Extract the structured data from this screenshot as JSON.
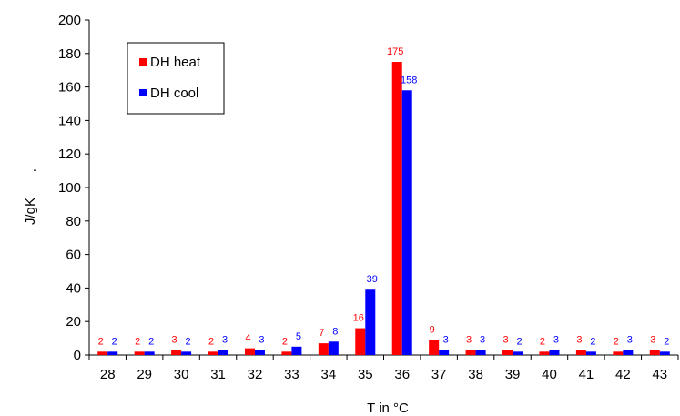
{
  "chart_data": {
    "type": "bar",
    "xlabel": "T in °C",
    "ylabel": "J/gK",
    "ylim": [
      0,
      200
    ],
    "yticks": [
      0,
      20,
      40,
      60,
      80,
      100,
      120,
      140,
      160,
      180,
      200
    ],
    "grid": false,
    "legend_position": "top-left",
    "categories": [
      "28",
      "29",
      "30",
      "31",
      "32",
      "33",
      "34",
      "35",
      "36",
      "37",
      "38",
      "39",
      "40",
      "41",
      "42",
      "43"
    ],
    "series": [
      {
        "name": "DH heat",
        "color": "#ff0000",
        "values": [
          2,
          2,
          3,
          2,
          4,
          2,
          7,
          16,
          175,
          9,
          3,
          3,
          2,
          3,
          2,
          3
        ]
      },
      {
        "name": "DH cool",
        "color": "#0000ff",
        "values": [
          2,
          2,
          2,
          3,
          3,
          5,
          8,
          39,
          158,
          3,
          3,
          2,
          3,
          2,
          3,
          2
        ]
      }
    ]
  }
}
